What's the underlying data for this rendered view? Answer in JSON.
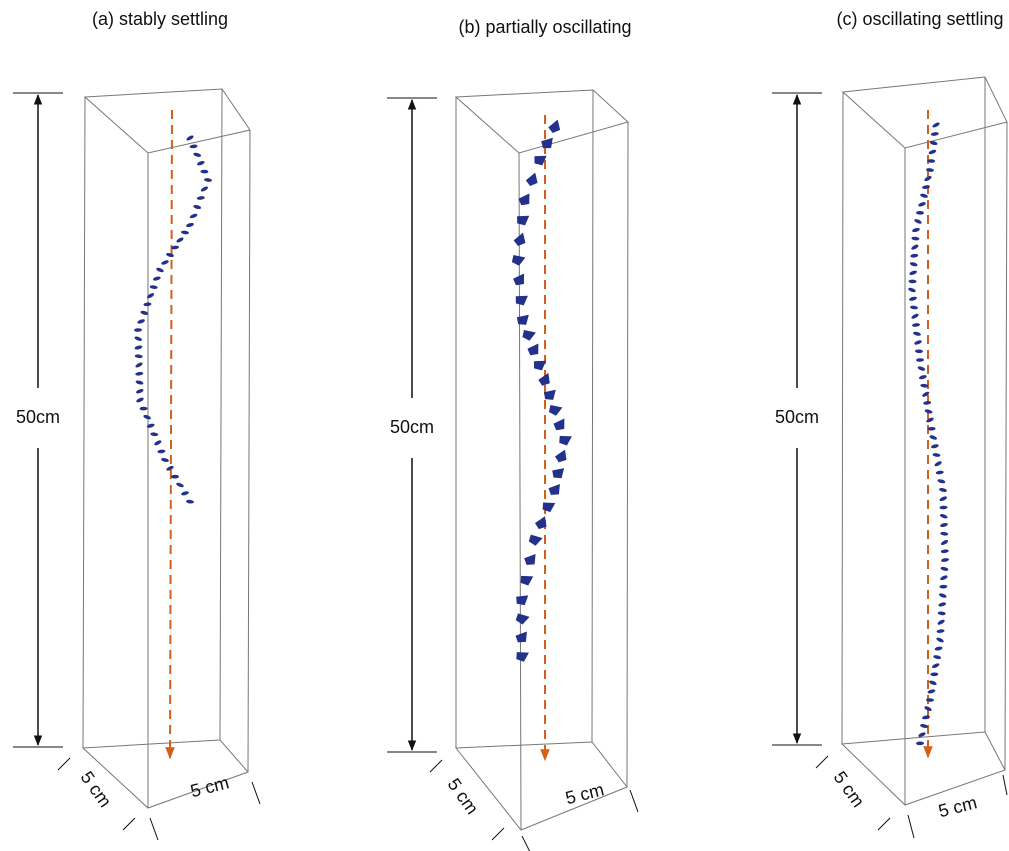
{
  "panels": [
    {
      "title": "(a) stably settling",
      "height_label": "50cm",
      "depth_label": "5 cm",
      "width_label": "5 cm"
    },
    {
      "title": "(b) partially oscillating",
      "height_label": "50cm",
      "depth_label": "5 cm",
      "width_label": "5 cm"
    },
    {
      "title": "(c) oscillating settling",
      "height_label": "50cm",
      "depth_label": "5 cm",
      "width_label": "5 cm"
    }
  ]
}
